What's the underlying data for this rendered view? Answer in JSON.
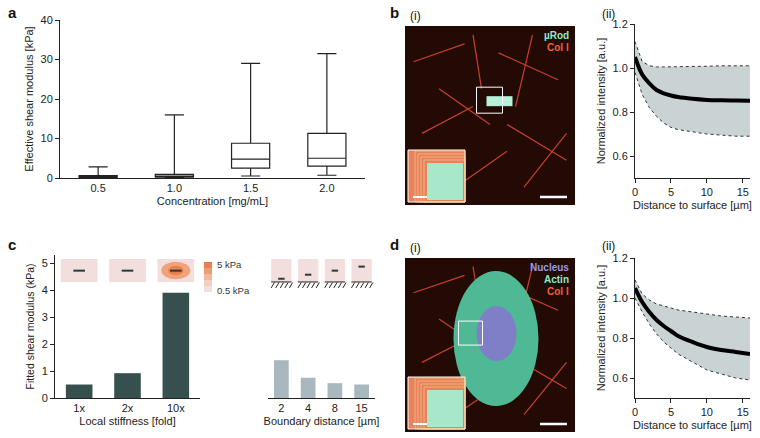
{
  "chart_data": [
    {
      "panel": "a",
      "type": "box",
      "xlabel": "Concentration [mg/mL]",
      "ylabel": "Effective shear modulus [kPa]",
      "categories": [
        "0.5",
        "1.0",
        "1.5",
        "2.0"
      ],
      "min": [
        0,
        0,
        0.5,
        0.7
      ],
      "q1": [
        0.1,
        0.2,
        2.5,
        3
      ],
      "median": [
        0.3,
        0.5,
        4.8,
        5
      ],
      "q3": [
        0.6,
        0.9,
        8.8,
        11.3
      ],
      "max": [
        2.8,
        16,
        29,
        31.5
      ],
      "color": "#222222",
      "ylim": [
        0,
        40
      ],
      "yticks": [
        0,
        10,
        20,
        30,
        40
      ]
    },
    {
      "panel": "b",
      "subpanel": "(ii)",
      "type": "line",
      "xlabel": "Distance to surface [µm]",
      "ylabel": "Normalized intensity [a.u.]",
      "x": [
        0,
        1,
        2,
        3,
        4,
        5,
        6,
        8,
        10,
        12,
        14,
        16
      ],
      "values": [
        1.05,
        0.97,
        0.93,
        0.9,
        0.885,
        0.875,
        0.868,
        0.86,
        0.855,
        0.853,
        0.852,
        0.851
      ],
      "band": {
        "lower": [
          0.98,
          0.88,
          0.82,
          0.78,
          0.75,
          0.73,
          0.72,
          0.71,
          0.7,
          0.695,
          0.69,
          0.69
        ],
        "upper": [
          1.12,
          1.03,
          1.01,
          1.005,
          1.005,
          1.005,
          1.005,
          1.005,
          1.008,
          1.01,
          1.01,
          1.01
        ],
        "color": "#c9d3d3"
      },
      "color": "#000000",
      "xlim": [
        0,
        16
      ],
      "xticks": [
        0,
        5,
        10,
        15
      ],
      "ylim": [
        0.5,
        1.2
      ],
      "yticks": [
        0.6,
        0.8,
        {
          "value": 1,
          "label": "1.0"
        },
        1.2
      ]
    },
    {
      "panel": "c",
      "type": "bar",
      "ylabel": "Fitted shear modulus (kPa)",
      "ylim": [
        0,
        5.3
      ],
      "yticks": [
        0,
        1,
        2,
        3,
        4,
        5
      ],
      "groups": [
        {
          "xlabel": "Local stiffness [fold]",
          "categories": [
            "1x",
            "2x",
            "10x"
          ],
          "values": [
            0.5,
            0.92,
            3.9
          ],
          "color": "#36504f"
        },
        {
          "xlabel": "Boundary distance [µm]",
          "categories": [
            "2",
            "4",
            "8",
            "15"
          ],
          "values": [
            1.4,
            0.75,
            0.55,
            0.5
          ],
          "color": "#a9b8be"
        }
      ],
      "inset_scale": {
        "high": "5 kPa",
        "low": "0.5 kPa"
      }
    },
    {
      "panel": "d",
      "subpanel": "(ii)",
      "type": "line",
      "xlabel": "Distance to surface [µm]",
      "ylabel": "Normalized intensity [a.u.]",
      "x": [
        0,
        1,
        2,
        3,
        4,
        5,
        6,
        8,
        10,
        12,
        14,
        16
      ],
      "values": [
        1.05,
        0.98,
        0.93,
        0.89,
        0.86,
        0.835,
        0.81,
        0.78,
        0.755,
        0.74,
        0.73,
        0.72
      ],
      "band": {
        "lower": [
          1.0,
          0.93,
          0.87,
          0.82,
          0.78,
          0.75,
          0.72,
          0.68,
          0.64,
          0.62,
          0.6,
          0.59
        ],
        "upper": [
          1.09,
          1.02,
          0.99,
          0.97,
          0.96,
          0.95,
          0.94,
          0.93,
          0.92,
          0.91,
          0.905,
          0.9
        ],
        "color": "#c9d3d3"
      },
      "color": "#000000",
      "xlim": [
        0,
        16
      ],
      "xticks": [
        0,
        5,
        10,
        15
      ],
      "ylim": [
        0.5,
        1.2
      ],
      "yticks": [
        0.6,
        0.8,
        {
          "value": 1,
          "label": "1.0"
        },
        1.2
      ]
    }
  ],
  "images": [
    {
      "panel": "b",
      "subpanel": "(i)",
      "channels": [
        {
          "name": "µRod",
          "color": "#8fe8c8"
        },
        {
          "name": "Col I",
          "color": "#f0603c"
        }
      ]
    },
    {
      "panel": "d",
      "subpanel": "(i)",
      "channels": [
        {
          "name": "Nucleus",
          "color": "#9a9ae0"
        },
        {
          "name": "Actin",
          "color": "#8fe8c8"
        },
        {
          "name": "Col I",
          "color": "#f0603c"
        }
      ]
    }
  ]
}
